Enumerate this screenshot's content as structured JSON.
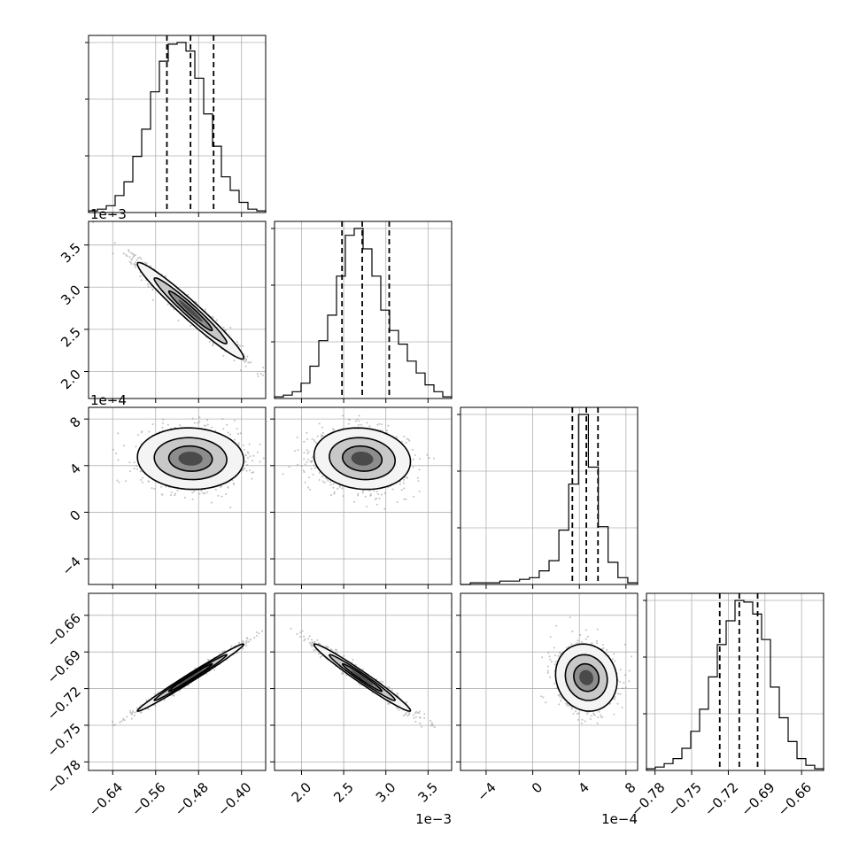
{
  "chart_data": {
    "type": "corner",
    "grid": true,
    "offset_labels": {
      "row1_y": "1e−3",
      "row2_y": "1e−4",
      "col1_x": "1e−3",
      "col2_x": "1e−4"
    },
    "ticks": {
      "p0": [
        {
          "v": -0.64,
          "label": "−0.64"
        },
        {
          "v": -0.56,
          "label": "−0.56"
        },
        {
          "v": -0.48,
          "label": "−0.48"
        },
        {
          "v": -0.4,
          "label": "−0.40"
        }
      ],
      "p1": [
        {
          "v": 2.0,
          "label": "2.0"
        },
        {
          "v": 2.5,
          "label": "2.5"
        },
        {
          "v": 3.0,
          "label": "3.0"
        },
        {
          "v": 3.5,
          "label": "3.5"
        }
      ],
      "p2": [
        {
          "v": -4,
          "label": "−4"
        },
        {
          "v": 0,
          "label": "0"
        },
        {
          "v": 4,
          "label": "4"
        },
        {
          "v": 8,
          "label": "8"
        }
      ],
      "p3": [
        {
          "v": -0.78,
          "label": "−0.78"
        },
        {
          "v": -0.75,
          "label": "−0.75"
        },
        {
          "v": -0.72,
          "label": "−0.72"
        },
        {
          "v": -0.69,
          "label": "−0.69"
        },
        {
          "v": -0.66,
          "label": "−0.66"
        }
      ]
    },
    "ranges": {
      "p0": [
        -0.685,
        -0.355
      ],
      "p1": [
        1.68,
        3.78
      ],
      "p2": [
        -6.2,
        9.0
      ],
      "p3": [
        -0.787,
        -0.642
      ]
    },
    "params": [
      {
        "mean": -0.495,
        "sd": 0.045,
        "q": [
          -0.539,
          -0.495,
          -0.452
        ],
        "hist": [
          1,
          2,
          4,
          10,
          18,
          33,
          49,
          71,
          89,
          99,
          100,
          95,
          79,
          58,
          39,
          21,
          13,
          6,
          2,
          1
        ]
      },
      {
        "mean": 2.72,
        "sd": 0.26,
        "q": [
          2.48,
          2.72,
          3.04
        ],
        "hist": [
          1,
          2,
          4,
          9,
          19,
          34,
          49,
          72,
          96,
          100,
          88,
          72,
          52,
          40,
          32,
          22,
          15,
          8,
          4,
          1
        ]
      },
      {
        "mean": 4.6,
        "sd": 1.2,
        "q": [
          3.4,
          4.6,
          5.6
        ],
        "hist": [
          0,
          1,
          1,
          1,
          2,
          2,
          3,
          4,
          8,
          14,
          32,
          59,
          100,
          69,
          34,
          13,
          4,
          1
        ]
      },
      {
        "mean": -0.711,
        "sd": 0.0125,
        "q": [
          -0.727,
          -0.711,
          -0.696
        ],
        "hist": [
          1,
          2,
          4,
          7,
          13,
          23,
          36,
          55,
          74,
          88,
          100,
          99,
          92,
          77,
          49,
          31,
          17,
          7,
          3,
          1
        ]
      }
    ],
    "pairs": [
      {
        "row": 1,
        "col": 0,
        "rho": -0.97
      },
      {
        "row": 2,
        "col": 0,
        "rho": -0.05
      },
      {
        "row": 2,
        "col": 1,
        "rho": -0.1
      },
      {
        "row": 3,
        "col": 0,
        "rho": 0.99
      },
      {
        "row": 3,
        "col": 1,
        "rho": -0.98
      },
      {
        "row": 3,
        "col": 2,
        "rho": -0.1
      }
    ]
  }
}
